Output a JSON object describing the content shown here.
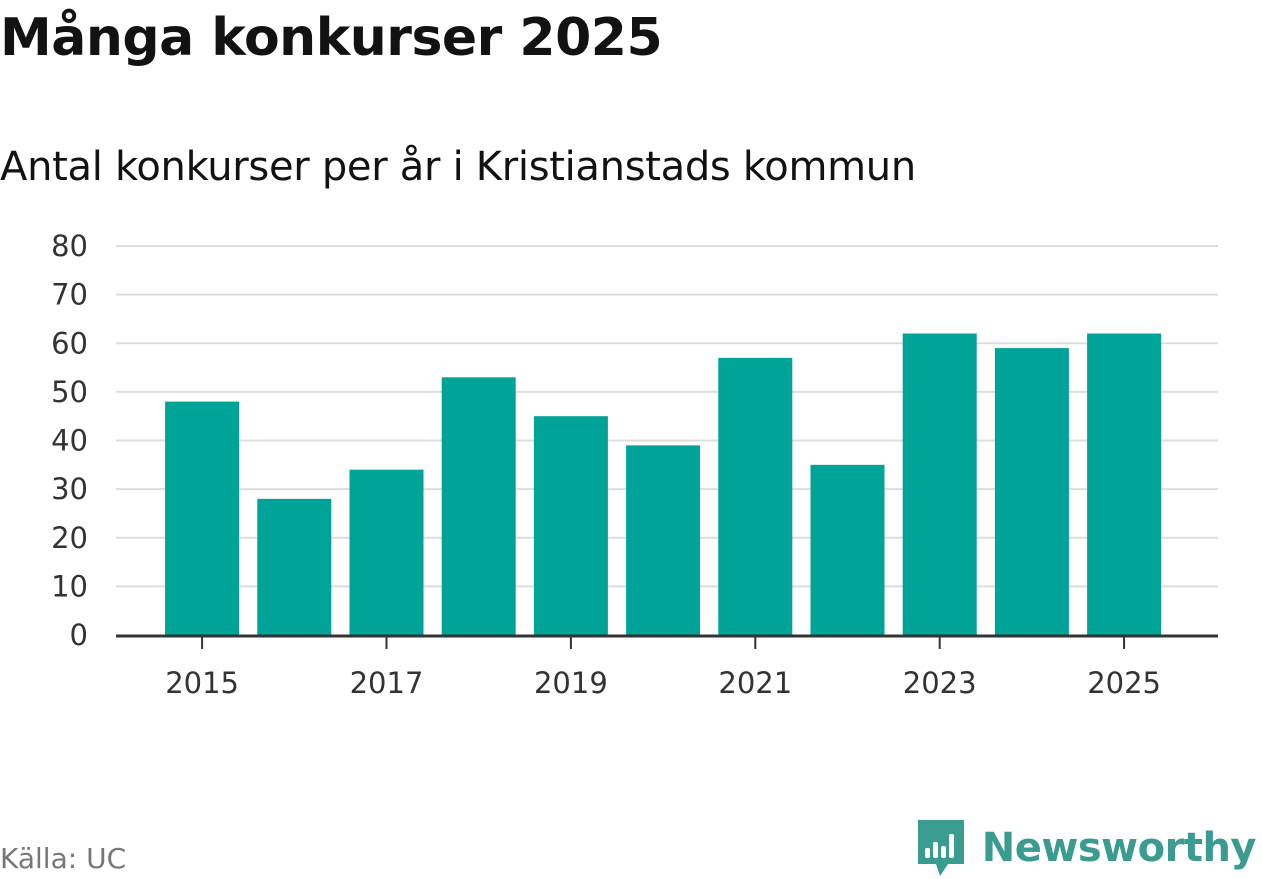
{
  "header": {
    "title": "Många konkurser 2025",
    "subtitle": "Antal konkurser per år i Kristianstads kommun"
  },
  "footer": {
    "source": "Källa: UC",
    "brand_name": "Newsworthy",
    "brand_icon": "newsworthy-logo-icon"
  },
  "colors": {
    "bar": "#00a397",
    "grid": "#dddddd",
    "axis": "#333333",
    "brand": "#3a9b90"
  },
  "chart_data": {
    "type": "bar",
    "title": "Många konkurser 2025",
    "subtitle": "Antal konkurser per år i Kristianstads kommun",
    "xlabel": "",
    "ylabel": "",
    "categories": [
      "2015",
      "2016",
      "2017",
      "2018",
      "2019",
      "2020",
      "2021",
      "2022",
      "2023",
      "2024",
      "2025"
    ],
    "values": [
      48,
      28,
      34,
      53,
      45,
      39,
      57,
      35,
      62,
      59,
      62
    ],
    "x_tick_labels": [
      "2015",
      "2017",
      "2019",
      "2021",
      "2023",
      "2025"
    ],
    "y_ticks": [
      0,
      10,
      20,
      30,
      40,
      50,
      60,
      70,
      80
    ],
    "y_tick_labels": [
      "0",
      "10",
      "20",
      "30",
      "40",
      "50",
      "60",
      "70",
      "80"
    ],
    "ylim": [
      0,
      80
    ],
    "grid": true,
    "legend": "none"
  }
}
